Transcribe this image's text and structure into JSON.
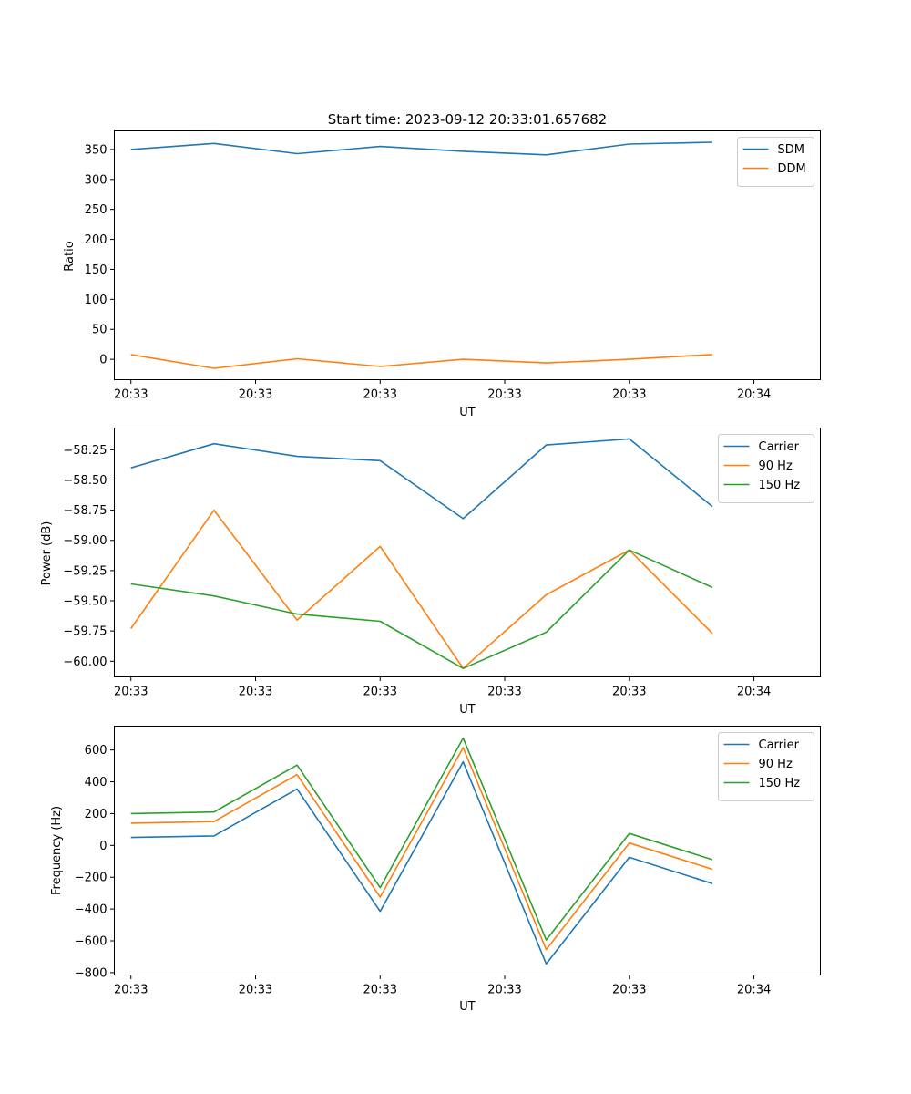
{
  "title": "Start time: 2023-09-12 20:33:01.657682",
  "colors": {
    "blue": "#1f77b4",
    "orange": "#ff7f0e",
    "green": "#2ca02c"
  },
  "chart_data": [
    {
      "type": "line",
      "ylabel": "Ratio",
      "xlabel": "UT",
      "x": [
        1,
        2,
        3,
        4,
        5,
        6,
        7,
        8
      ],
      "xlim": [
        0.8,
        9.3
      ],
      "xticks": [
        1,
        2.5,
        4,
        5.5,
        7,
        8.5
      ],
      "xtick_labels": [
        "20:33",
        "20:33",
        "20:33",
        "20:33",
        "20:33",
        "20:34"
      ],
      "ylim": [
        -34,
        381
      ],
      "yticks": [
        0,
        50,
        100,
        150,
        200,
        250,
        300,
        350
      ],
      "ytick_labels": [
        "0",
        "50",
        "100",
        "150",
        "200",
        "250",
        "300",
        "350"
      ],
      "legend_position": "top-right",
      "series": [
        {
          "name": "SDM",
          "color": "#1f77b4",
          "values": [
            350,
            360,
            343,
            355,
            347,
            341,
            359,
            362
          ]
        },
        {
          "name": "DDM",
          "color": "#ff7f0e",
          "values": [
            8,
            -15,
            1,
            -12,
            0,
            -6,
            0,
            8
          ]
        }
      ]
    },
    {
      "type": "line",
      "ylabel": "Power (dB)",
      "xlabel": "UT",
      "x": [
        1,
        2,
        3,
        4,
        5,
        6,
        7,
        8
      ],
      "xlim": [
        0.8,
        9.3
      ],
      "xticks": [
        1,
        2.5,
        4,
        5.5,
        7,
        8.5
      ],
      "xtick_labels": [
        "20:33",
        "20:33",
        "20:33",
        "20:33",
        "20:33",
        "20:34"
      ],
      "ylim": [
        -60.13,
        -58.07
      ],
      "yticks": [
        -60.0,
        -59.75,
        -59.5,
        -59.25,
        -59.0,
        -58.75,
        -58.5,
        -58.25
      ],
      "ytick_labels": [
        "−60.00",
        "−59.75",
        "−59.50",
        "−59.25",
        "−59.00",
        "−58.75",
        "−58.50",
        "−58.25"
      ],
      "legend_position": "top-right",
      "series": [
        {
          "name": "Carrier",
          "color": "#1f77b4",
          "values": [
            -58.4,
            -58.2,
            -58.305,
            -58.34,
            -58.82,
            -58.21,
            -58.16,
            -58.72
          ]
        },
        {
          "name": "90 Hz",
          "color": "#ff7f0e",
          "values": [
            -59.73,
            -58.75,
            -59.66,
            -59.05,
            -60.06,
            -59.45,
            -59.08,
            -59.77
          ]
        },
        {
          "name": "150 Hz",
          "color": "#2ca02c",
          "values": [
            -59.36,
            -59.46,
            -59.61,
            -59.67,
            -60.06,
            -59.76,
            -59.08,
            -59.39
          ]
        }
      ]
    },
    {
      "type": "line",
      "ylabel": "Frequency (Hz)",
      "xlabel": "UT",
      "x": [
        1,
        2,
        3,
        4,
        5,
        6,
        7,
        8
      ],
      "xlim": [
        0.8,
        9.3
      ],
      "xticks": [
        1,
        2.5,
        4,
        5.5,
        7,
        8.5
      ],
      "xtick_labels": [
        "20:33",
        "20:33",
        "20:33",
        "20:33",
        "20:33",
        "20:34"
      ],
      "ylim": [
        -815,
        750
      ],
      "yticks": [
        -800,
        -600,
        -400,
        -200,
        0,
        200,
        400,
        600
      ],
      "ytick_labels": [
        "−800",
        "−600",
        "−400",
        "−200",
        "0",
        "200",
        "400",
        "600"
      ],
      "legend_position": "top-right",
      "series": [
        {
          "name": "Carrier",
          "color": "#1f77b4",
          "values": [
            50,
            60,
            355,
            -415,
            525,
            -745,
            -75,
            -240
          ]
        },
        {
          "name": "90 Hz",
          "color": "#ff7f0e",
          "values": [
            140,
            150,
            445,
            -325,
            615,
            -655,
            15,
            -150
          ]
        },
        {
          "name": "150 Hz",
          "color": "#2ca02c",
          "values": [
            200,
            210,
            505,
            -265,
            675,
            -595,
            75,
            -90
          ]
        }
      ]
    }
  ]
}
